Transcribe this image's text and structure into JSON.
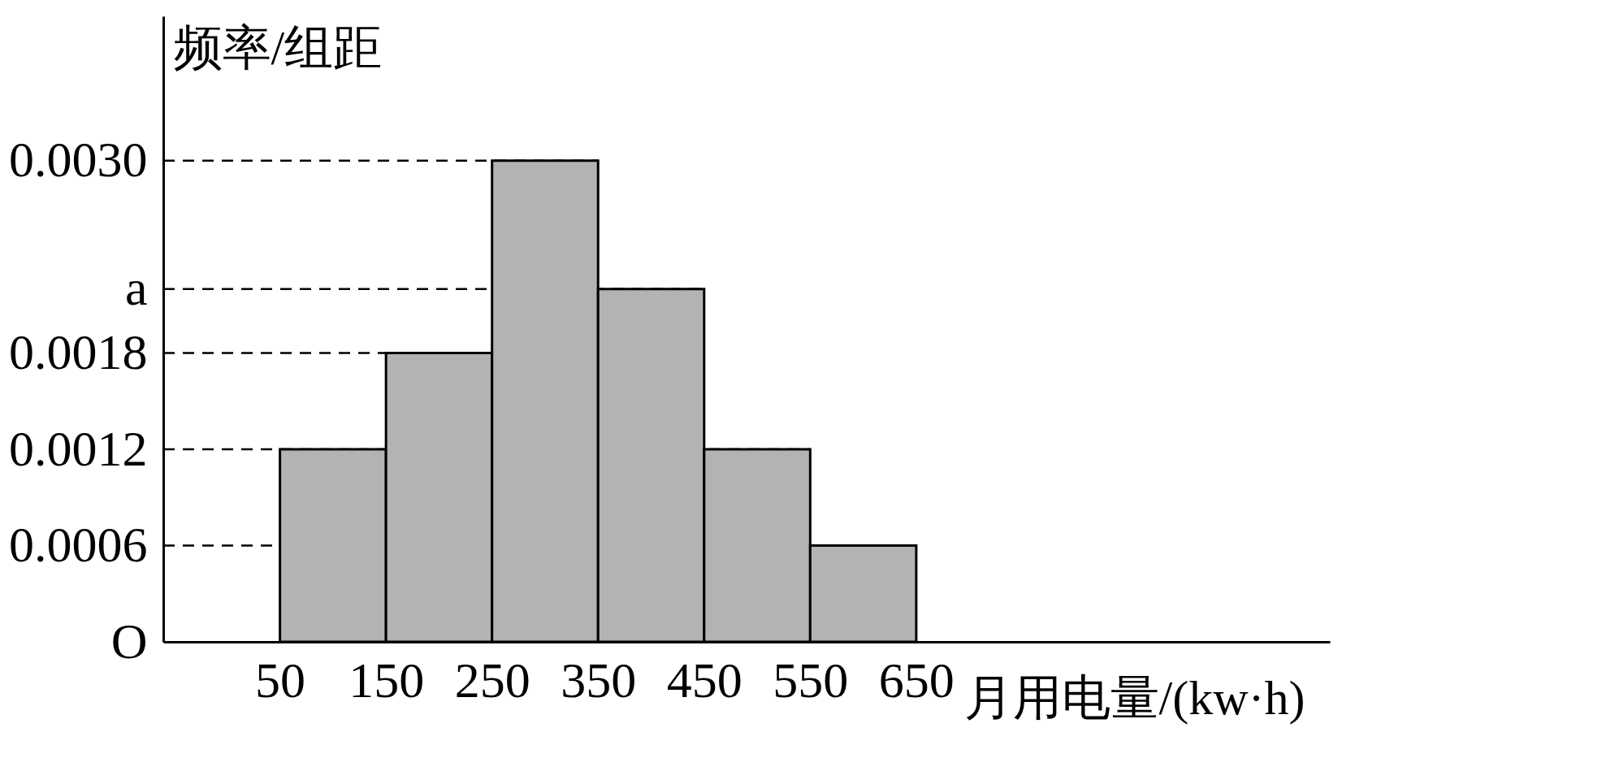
{
  "chart_data": {
    "type": "histogram",
    "xlabel": "月用电量/(kw·h)",
    "ylabel": "频率/组距",
    "bins": [
      50,
      150,
      250,
      350,
      450,
      550,
      650
    ],
    "values": [
      0.0012,
      0.0018,
      0.003,
      0.0022,
      0.0012,
      0.0006
    ],
    "color": "#b3b3b3",
    "xlim": [
      -60,
      1040
    ],
    "xticks": [
      50,
      150,
      250,
      350,
      450,
      550,
      650
    ],
    "ylim": [
      0,
      0.0039
    ],
    "yticks": [
      {
        "value": 0,
        "label": "O"
      },
      0.0006,
      0.0012,
      0.0018,
      {
        "value": 0.0022,
        "label": "a"
      },
      {
        "value": 0.003,
        "label": "0.0030"
      }
    ],
    "ref_lines": [
      {
        "axis": "y",
        "value": 0.0006,
        "line_style": "dashed"
      },
      {
        "axis": "y",
        "value": 0.0012,
        "line_style": "dashed"
      },
      {
        "axis": "y",
        "value": 0.0018,
        "line_style": "dashed"
      },
      {
        "axis": "y",
        "value": 0.0022,
        "line_style": "dashed"
      },
      {
        "axis": "y",
        "value": 0.003,
        "line_style": "dashed"
      }
    ]
  }
}
